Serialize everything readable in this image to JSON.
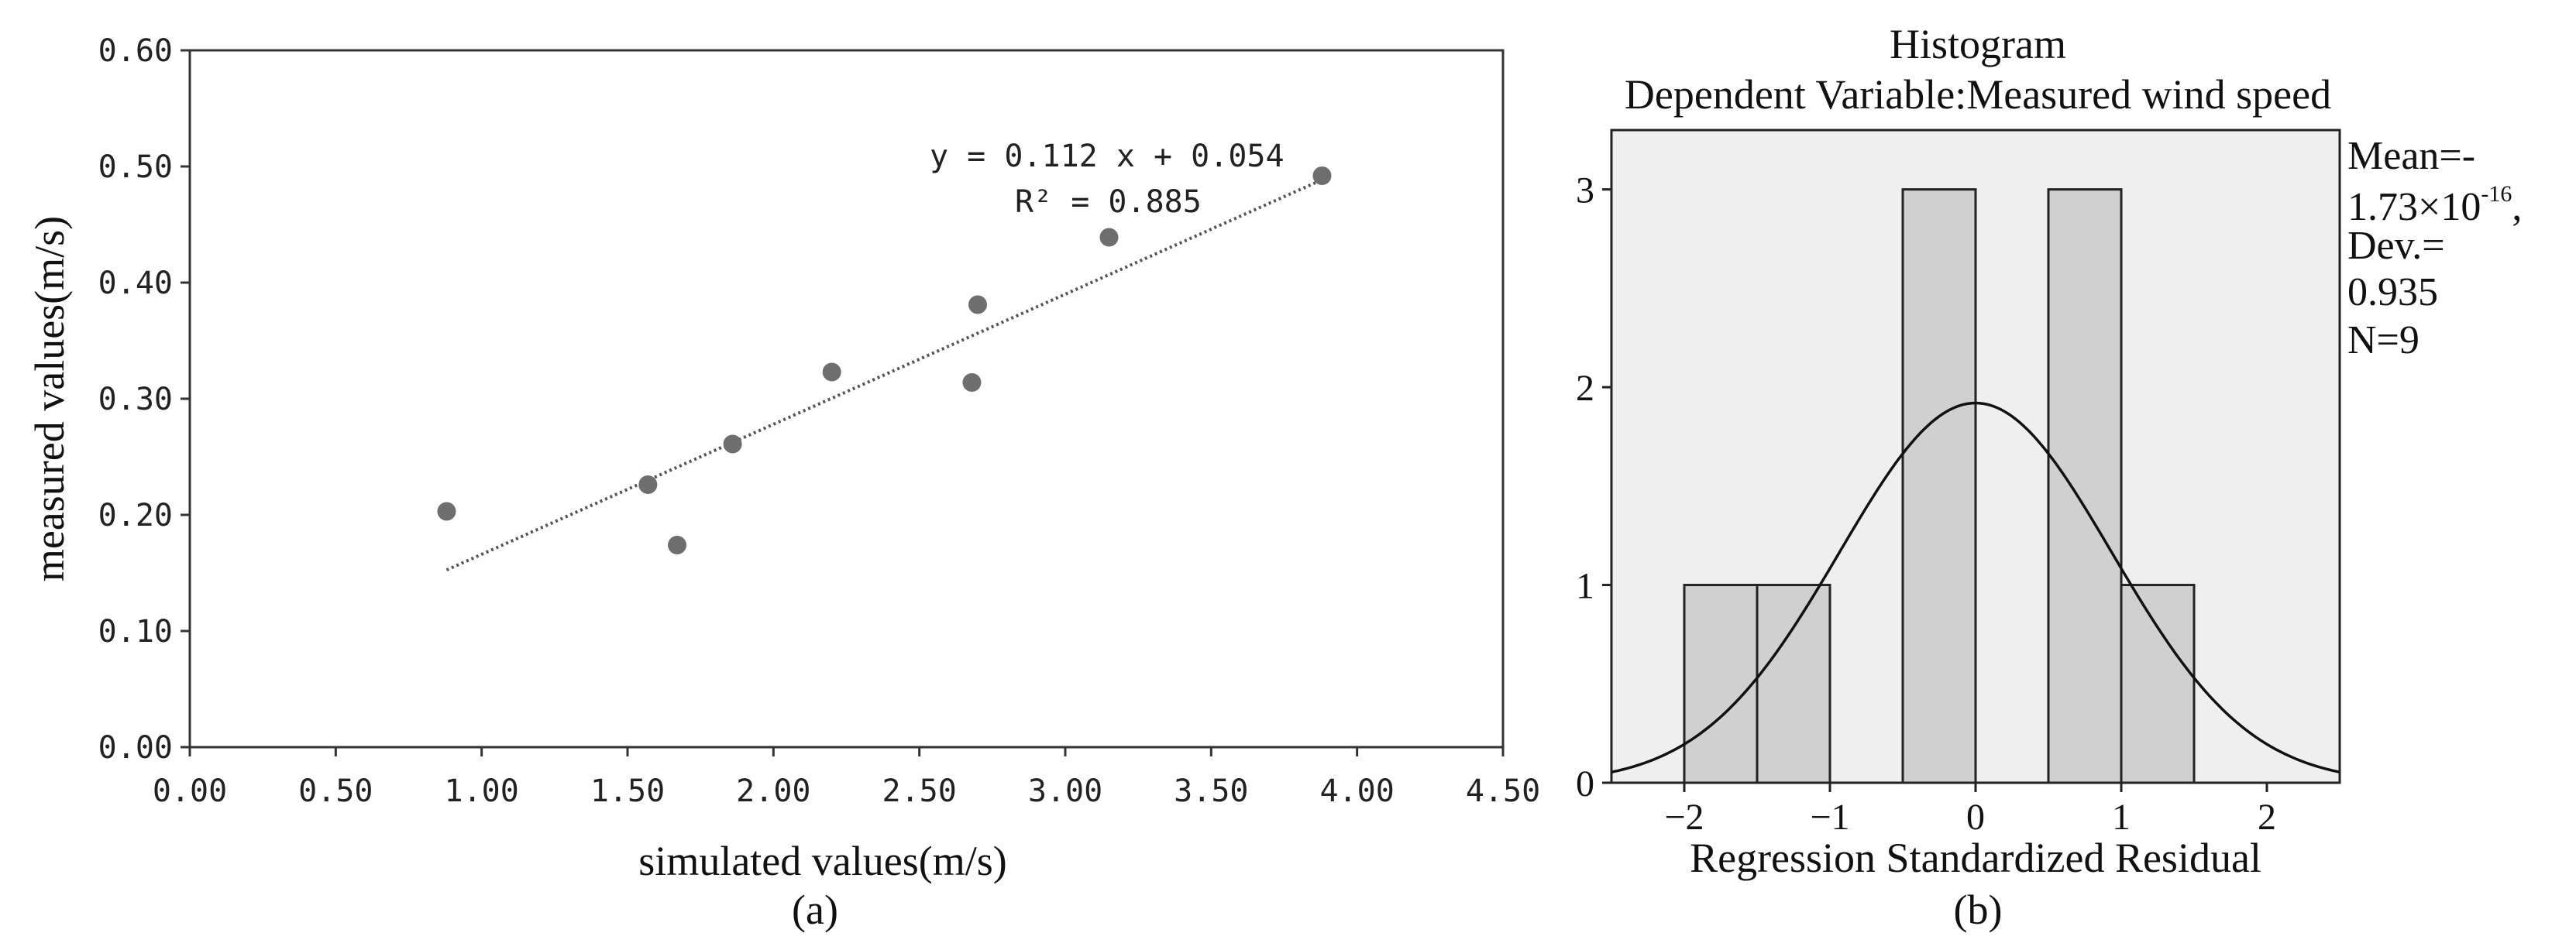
{
  "chart_data": [
    {
      "type": "scatter",
      "panel_label": "(a)",
      "xlabel": "simulated values(m/s)",
      "ylabel": "measured values(m/s)",
      "xlim": [
        0,
        4.5
      ],
      "ylim": [
        0,
        0.6
      ],
      "x_ticks": [
        "0.00",
        "0.50",
        "1.00",
        "1.50",
        "2.00",
        "2.50",
        "3.00",
        "3.50",
        "4.00",
        "4.50"
      ],
      "y_ticks": [
        "0.00",
        "0.10",
        "0.20",
        "0.30",
        "0.40",
        "0.50",
        "0.60"
      ],
      "points": [
        {
          "x": 0.88,
          "y": 0.203
        },
        {
          "x": 1.57,
          "y": 0.226
        },
        {
          "x": 1.67,
          "y": 0.174
        },
        {
          "x": 1.86,
          "y": 0.261
        },
        {
          "x": 2.2,
          "y": 0.323
        },
        {
          "x": 2.68,
          "y": 0.314
        },
        {
          "x": 2.7,
          "y": 0.381
        },
        {
          "x": 3.15,
          "y": 0.439
        },
        {
          "x": 3.88,
          "y": 0.492
        }
      ],
      "trendline": {
        "slope": 0.112,
        "intercept": 0.054,
        "x_range": [
          0.88,
          3.88
        ]
      },
      "equation": "y = 0.112 x + 0.054",
      "r2_label": "R² = 0.885",
      "colors": {
        "point": "#6e6e6e",
        "trend": "#555555",
        "axis": "#333333"
      }
    },
    {
      "type": "bar",
      "subtype": "histogram",
      "panel_label": "(b)",
      "title": "Histogram",
      "subtitle": "Dependent Variable:Measured wind speed",
      "xlabel": "Regression Standardized Residual",
      "xlim": [
        -2.5,
        2.5
      ],
      "ylim": [
        0,
        3.3
      ],
      "x_ticks": [
        "−2",
        "−1",
        "0",
        "1",
        "2"
      ],
      "x_tick_values": [
        -2,
        -1,
        0,
        1,
        2
      ],
      "y_ticks": [
        "0",
        "1",
        "2",
        "3"
      ],
      "y_tick_values": [
        0,
        1,
        2,
        3
      ],
      "bins": [
        {
          "start": -2.0,
          "end": -1.5,
          "count": 1
        },
        {
          "start": -1.5,
          "end": -1.0,
          "count": 1
        },
        {
          "start": -0.5,
          "end": 0.0,
          "count": 3
        },
        {
          "start": 0.5,
          "end": 1.0,
          "count": 3
        },
        {
          "start": 1.0,
          "end": 1.5,
          "count": 1
        }
      ],
      "normal_curve": {
        "mean": 0,
        "std": 0.935,
        "n": 9,
        "bin_width": 0.5
      },
      "stats": {
        "mean_label": "Mean=-",
        "mean_value": "1.73×10",
        "mean_exp": "-16",
        "mean_suffix": ",",
        "dev_label": "Dev.=",
        "dev_value": "0.935",
        "n_label": "N=9"
      },
      "colors": {
        "plot_bg": "#efefef",
        "bar": "#d0d0d0",
        "bar_stroke": "#222222",
        "curve": "#111111"
      }
    }
  ]
}
